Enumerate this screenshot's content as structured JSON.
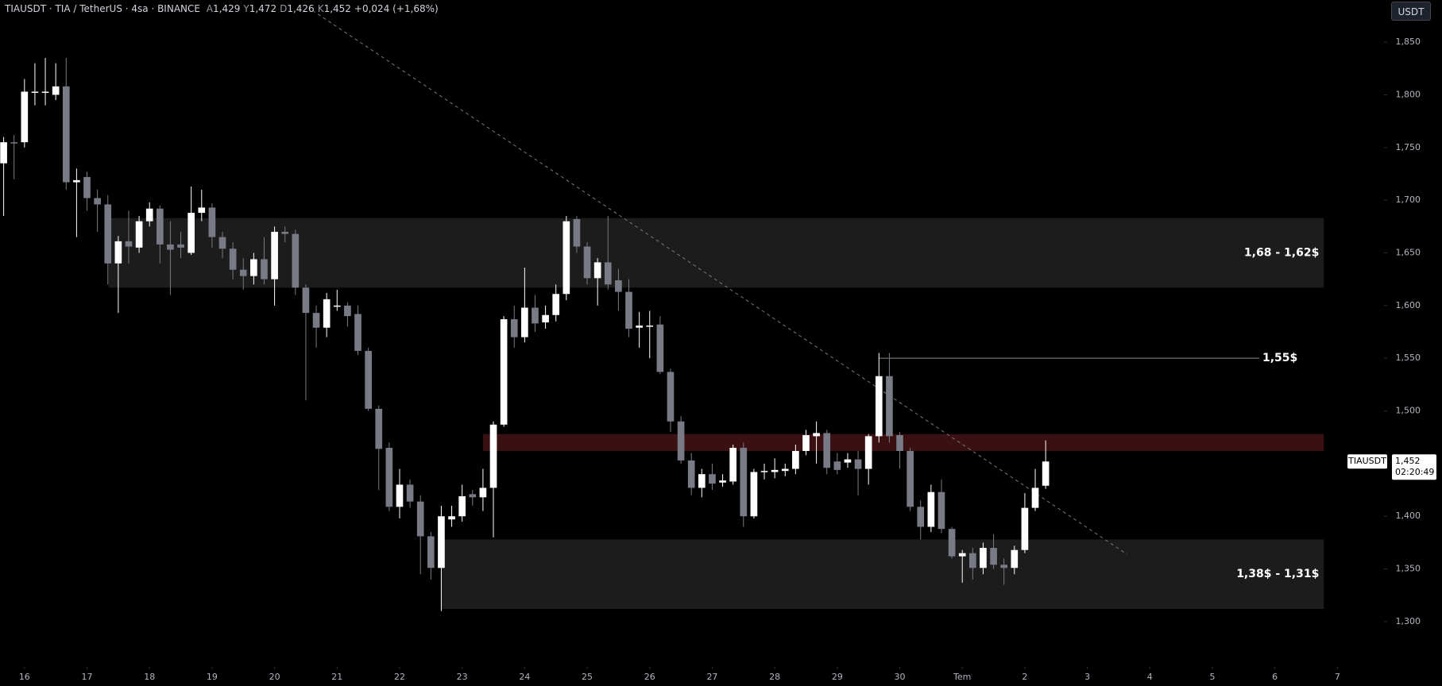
{
  "chart_data": {
    "type": "candlestick",
    "header": {
      "symbol": "TIAUSDT · TIA / TetherUS · 4sa · BINANCE",
      "ohlc": [
        {
          "key": "A",
          "value": "1,429"
        },
        {
          "key": "Y",
          "value": "1,472"
        },
        {
          "key": "D",
          "value": "1,426"
        },
        {
          "key": "K",
          "value": "1,452"
        }
      ],
      "change": "+0,024 (+1,68%)"
    },
    "currency_button": "USDT",
    "up_color": "#ffffff",
    "down_color": "#787b86",
    "open": [
      1.735,
      1.755,
      1.755,
      1.802,
      1.802,
      1.8,
      1.808,
      1.717,
      1.722,
      1.702,
      1.696,
      1.64,
      1.661,
      1.655,
      1.68,
      1.692,
      1.658,
      1.658,
      1.65,
      1.688,
      1.693,
      1.665,
      1.654,
      1.634,
      1.628,
      1.644,
      1.625,
      1.67,
      1.668,
      1.617,
      1.593,
      1.579,
      1.6,
      1.6,
      1.592,
      1.557,
      1.502,
      1.465,
      1.409,
      1.43,
      1.414,
      1.381,
      1.351,
      1.397,
      1.4,
      1.421,
      1.418,
      1.427,
      1.487,
      1.587,
      1.57,
      1.598,
      1.584,
      1.591,
      1.611,
      1.682,
      1.656,
      1.626,
      1.641,
      1.624,
      1.613,
      1.579,
      1.581,
      1.582,
      1.537,
      1.49,
      1.453,
      1.427,
      1.44,
      1.432,
      1.433,
      1.465,
      1.4,
      1.442,
      1.442,
      1.443,
      1.445,
      1.462,
      1.476,
      1.479,
      1.452,
      1.451,
      1.454,
      1.445,
      1.476,
      1.533,
      1.477,
      1.462,
      1.409,
      1.39,
      1.423,
      1.388,
      1.362,
      1.365,
      1.351,
      1.37,
      1.354,
      1.351,
      1.368,
      1.408,
      1.429
    ],
    "high": [
      1.76,
      1.762,
      1.815,
      1.83,
      1.835,
      1.83,
      1.835,
      1.73,
      1.727,
      1.71,
      1.705,
      1.666,
      1.69,
      1.685,
      1.698,
      1.695,
      1.68,
      1.67,
      1.713,
      1.71,
      1.697,
      1.67,
      1.66,
      1.645,
      1.65,
      1.665,
      1.675,
      1.675,
      1.672,
      1.62,
      1.6,
      1.612,
      1.615,
      1.603,
      1.6,
      1.56,
      1.505,
      1.47,
      1.445,
      1.435,
      1.42,
      1.385,
      1.41,
      1.41,
      1.43,
      1.425,
      1.445,
      1.49,
      1.59,
      1.6,
      1.636,
      1.61,
      1.6,
      1.62,
      1.685,
      1.685,
      1.66,
      1.645,
      1.685,
      1.635,
      1.625,
      1.594,
      1.595,
      1.59,
      1.54,
      1.495,
      1.46,
      1.445,
      1.45,
      1.44,
      1.468,
      1.47,
      1.445,
      1.45,
      1.455,
      1.45,
      1.468,
      1.482,
      1.49,
      1.482,
      1.46,
      1.46,
      1.462,
      1.478,
      1.555,
      1.555,
      1.48,
      1.465,
      1.415,
      1.43,
      1.435,
      1.39,
      1.368,
      1.37,
      1.375,
      1.383,
      1.36,
      1.372,
      1.422,
      1.445,
      1.472
    ],
    "low": [
      1.685,
      1.72,
      1.75,
      1.79,
      1.79,
      1.795,
      1.71,
      1.665,
      1.69,
      1.67,
      1.62,
      1.593,
      1.64,
      1.65,
      1.675,
      1.64,
      1.61,
      1.645,
      1.648,
      1.68,
      1.655,
      1.645,
      1.625,
      1.615,
      1.62,
      1.62,
      1.6,
      1.66,
      1.61,
      1.51,
      1.56,
      1.57,
      1.595,
      1.58,
      1.553,
      1.5,
      1.425,
      1.405,
      1.398,
      1.408,
      1.345,
      1.34,
      1.31,
      1.39,
      1.395,
      1.41,
      1.405,
      1.38,
      1.485,
      1.56,
      1.565,
      1.575,
      1.578,
      1.585,
      1.605,
      1.65,
      1.62,
      1.6,
      1.615,
      1.595,
      1.57,
      1.56,
      1.55,
      1.535,
      1.48,
      1.45,
      1.42,
      1.418,
      1.425,
      1.428,
      1.43,
      1.39,
      1.398,
      1.435,
      1.436,
      1.438,
      1.44,
      1.458,
      1.45,
      1.44,
      1.44,
      1.446,
      1.42,
      1.43,
      1.47,
      1.47,
      1.445,
      1.405,
      1.378,
      1.385,
      1.384,
      1.36,
      1.337,
      1.34,
      1.345,
      1.35,
      1.335,
      1.345,
      1.365,
      1.405,
      1.426
    ],
    "close": [
      1.755,
      1.754,
      1.803,
      1.803,
      1.803,
      1.808,
      1.717,
      1.719,
      1.702,
      1.696,
      1.64,
      1.661,
      1.656,
      1.68,
      1.692,
      1.658,
      1.653,
      1.655,
      1.688,
      1.693,
      1.665,
      1.654,
      1.634,
      1.628,
      1.644,
      1.625,
      1.67,
      1.668,
      1.617,
      1.593,
      1.579,
      1.606,
      1.6,
      1.59,
      1.557,
      1.502,
      1.464,
      1.409,
      1.43,
      1.414,
      1.381,
      1.351,
      1.4,
      1.4,
      1.419,
      1.418,
      1.427,
      1.487,
      1.587,
      1.57,
      1.598,
      1.583,
      1.591,
      1.611,
      1.68,
      1.656,
      1.626,
      1.641,
      1.62,
      1.613,
      1.578,
      1.581,
      1.581,
      1.537,
      1.49,
      1.453,
      1.427,
      1.44,
      1.431,
      1.434,
      1.465,
      1.4,
      1.442,
      1.443,
      1.444,
      1.445,
      1.462,
      1.477,
      1.479,
      1.446,
      1.444,
      1.454,
      1.445,
      1.476,
      1.533,
      1.476,
      1.462,
      1.409,
      1.39,
      1.423,
      1.388,
      1.362,
      1.365,
      1.351,
      1.37,
      1.354,
      1.351,
      1.368,
      1.408,
      1.427,
      1.452
    ],
    "xlim": [
      -0.35,
      132.47
    ],
    "xticks": [
      {
        "value": 2,
        "label": "16"
      },
      {
        "value": 8,
        "label": "17"
      },
      {
        "value": 14,
        "label": "18"
      },
      {
        "value": 20,
        "label": "19"
      },
      {
        "value": 26,
        "label": "20"
      },
      {
        "value": 32,
        "label": "21"
      },
      {
        "value": 38,
        "label": "22"
      },
      {
        "value": 44,
        "label": "23"
      },
      {
        "value": 50,
        "label": "24"
      },
      {
        "value": 56,
        "label": "25"
      },
      {
        "value": 62,
        "label": "26"
      },
      {
        "value": 68,
        "label": "27"
      },
      {
        "value": 74,
        "label": "28"
      },
      {
        "value": 80,
        "label": "29"
      },
      {
        "value": 86,
        "label": "30"
      },
      {
        "value": 92,
        "label": "Tem"
      },
      {
        "value": 98,
        "label": "2"
      },
      {
        "value": 104,
        "label": "3"
      },
      {
        "value": 110,
        "label": "4"
      },
      {
        "value": 116,
        "label": "5"
      },
      {
        "value": 122,
        "label": "6"
      },
      {
        "value": 128,
        "label": "7"
      }
    ],
    "ylim": [
      1.257,
      1.89
    ],
    "yticks": [
      {
        "value": 1.3,
        "label": "1,300"
      },
      {
        "value": 1.35,
        "label": "1,350"
      },
      {
        "value": 1.4,
        "label": "1,400"
      },
      {
        "value": 1.45,
        "label": "1,450"
      },
      {
        "value": 1.5,
        "label": "1,500"
      },
      {
        "value": 1.55,
        "label": "1,550"
      },
      {
        "value": 1.6,
        "label": "1,600"
      },
      {
        "value": 1.65,
        "label": "1,650"
      },
      {
        "value": 1.7,
        "label": "1,700"
      },
      {
        "value": 1.75,
        "label": "1,750"
      },
      {
        "value": 1.8,
        "label": "1,800"
      },
      {
        "value": 1.85,
        "label": "1,850"
      }
    ],
    "zones": [
      {
        "label": "1,68 - 1,62$",
        "top": 1.683,
        "bottom": 1.617,
        "start": 10.06,
        "end": 126.7,
        "color": "#1c1c1c"
      },
      {
        "top": 1.478,
        "bottom": 1.462,
        "start": 46,
        "end": 126.7,
        "color": "#3a1013"
      },
      {
        "label": "1,38$ - 1,31$",
        "top": 1.378,
        "bottom": 1.312,
        "start": 42,
        "end": 126.7,
        "color": "#1c1c1c"
      }
    ],
    "level": {
      "label": "1,55$",
      "value": 1.55,
      "start": 84,
      "end": 120.5,
      "color": "#8a8a8a"
    },
    "trendline": {
      "x": [
        29.65,
        107.8
      ],
      "y": [
        1.88,
        1.364
      ],
      "color": "#7a7a7a"
    },
    "last_price": {
      "symbol": "TIAUSDT",
      "value": 1.452,
      "label": "1,452",
      "countdown": "02:20:49"
    }
  }
}
